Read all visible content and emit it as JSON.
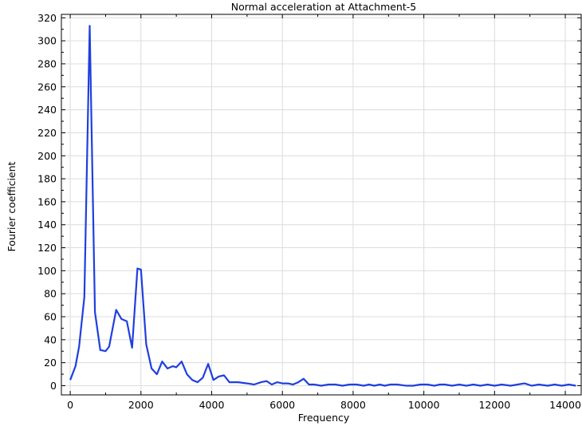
{
  "chart_data": {
    "type": "line",
    "title": "Normal acceleration at Attachment-5",
    "xlabel": "Frequency",
    "ylabel": "Fourier coefficient",
    "xlim": [
      -250,
      14450
    ],
    "ylim": [
      -8,
      323
    ],
    "xticks": [
      0,
      2000,
      4000,
      6000,
      8000,
      10000,
      12000,
      14000
    ],
    "yticks": [
      0,
      20,
      40,
      60,
      80,
      100,
      120,
      140,
      160,
      180,
      200,
      220,
      240,
      260,
      280,
      300,
      320
    ],
    "grid": true,
    "line_color": "#1f3fe0",
    "series": [
      {
        "x": [
          0,
          150,
          250,
          400,
          550,
          700,
          850,
          1000,
          1100,
          1300,
          1450,
          1600,
          1750,
          1900,
          2000,
          2150,
          2300,
          2450,
          2600,
          2750,
          2900,
          3000,
          3150,
          3300,
          3450,
          3600,
          3750,
          3900,
          4050,
          4200,
          4350,
          4500,
          4750,
          5000,
          5200,
          5400,
          5550,
          5700,
          5850,
          6000,
          6150,
          6300,
          6450,
          6600,
          6750,
          6900,
          7100,
          7300,
          7500,
          7700,
          7900,
          8100,
          8300,
          8450,
          8600,
          8750,
          8900,
          9050,
          9250,
          9500,
          9700,
          9900,
          10100,
          10300,
          10450,
          10600,
          10800,
          11000,
          11200,
          11400,
          11600,
          11800,
          12000,
          12200,
          12450,
          12650,
          12850,
          13050,
          13250,
          13500,
          13700,
          13900,
          14100,
          14300
        ],
        "y": [
          5,
          17,
          34,
          77,
          313,
          64,
          31,
          30,
          34,
          66,
          58,
          56,
          33,
          102,
          101,
          36,
          15,
          10,
          21,
          15,
          17,
          16,
          21,
          10,
          5,
          3,
          7,
          19,
          5,
          8,
          9,
          3,
          3,
          2,
          1,
          3,
          4,
          1,
          3,
          2,
          2,
          1,
          3,
          6,
          1,
          1,
          0,
          1,
          1,
          0,
          1,
          1,
          0,
          1,
          0,
          1,
          0,
          1,
          1,
          0,
          0,
          1,
          1,
          0,
          1,
          1,
          0,
          1,
          0,
          1,
          0,
          1,
          0,
          1,
          0,
          1,
          2,
          0,
          1,
          0,
          1,
          0,
          1,
          0
        ]
      }
    ]
  }
}
